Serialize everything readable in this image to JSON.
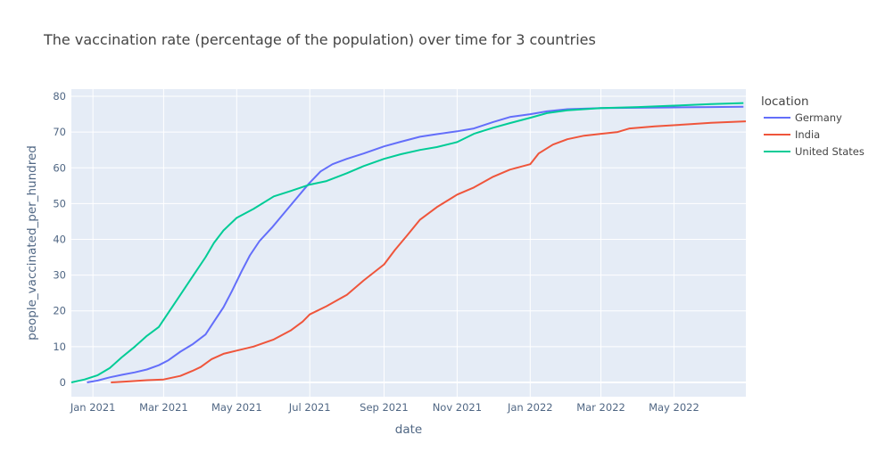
{
  "chart_data": {
    "type": "line",
    "title": "The vaccination rate (percentage of the population) over time for 3 countries",
    "xlabel": "date",
    "ylabel": "people_vaccinated_per_hundred",
    "xlim": [
      "2020-12-14",
      "2022-06-30"
    ],
    "ylim": [
      -4,
      82
    ],
    "x_ticks": [
      {
        "date": "2021-01-01",
        "label": "Jan 2021"
      },
      {
        "date": "2021-03-01",
        "label": "Mar 2021"
      },
      {
        "date": "2021-05-01",
        "label": "May 2021"
      },
      {
        "date": "2021-07-01",
        "label": "Jul 2021"
      },
      {
        "date": "2021-09-01",
        "label": "Sep 2021"
      },
      {
        "date": "2021-11-01",
        "label": "Nov 2021"
      },
      {
        "date": "2022-01-01",
        "label": "Jan 2022"
      },
      {
        "date": "2022-03-01",
        "label": "Mar 2022"
      },
      {
        "date": "2022-05-01",
        "label": "May 2022"
      }
    ],
    "y_ticks": [
      0,
      10,
      20,
      30,
      40,
      50,
      60,
      70,
      80
    ],
    "legend": {
      "title": "location",
      "position": "right"
    },
    "grid": true,
    "plot_bgcolor": "#E5ECF6",
    "series": [
      {
        "name": "Germany",
        "color": "#636EFA",
        "points": [
          [
            "2020-12-27",
            0.0
          ],
          [
            "2021-01-05",
            0.5
          ],
          [
            "2021-01-15",
            1.4
          ],
          [
            "2021-01-25",
            2.1
          ],
          [
            "2021-02-05",
            2.8
          ],
          [
            "2021-02-15",
            3.6
          ],
          [
            "2021-02-25",
            4.8
          ],
          [
            "2021-03-05",
            6.2
          ],
          [
            "2021-03-15",
            8.6
          ],
          [
            "2021-03-25",
            10.6
          ],
          [
            "2021-04-05",
            13.4
          ],
          [
            "2021-04-12",
            17.0
          ],
          [
            "2021-04-20",
            21.0
          ],
          [
            "2021-04-27",
            25.5
          ],
          [
            "2021-05-05",
            31.0
          ],
          [
            "2021-05-12",
            35.5
          ],
          [
            "2021-05-20",
            39.5
          ],
          [
            "2021-05-31",
            43.5
          ],
          [
            "2021-06-10",
            47.5
          ],
          [
            "2021-06-20",
            51.5
          ],
          [
            "2021-06-30",
            55.5
          ],
          [
            "2021-07-10",
            59.0
          ],
          [
            "2021-07-20",
            61.0
          ],
          [
            "2021-08-01",
            62.5
          ],
          [
            "2021-08-15",
            64.0
          ],
          [
            "2021-09-01",
            66.0
          ],
          [
            "2021-09-15",
            67.3
          ],
          [
            "2021-10-01",
            68.7
          ],
          [
            "2021-10-15",
            69.4
          ],
          [
            "2021-11-01",
            70.2
          ],
          [
            "2021-11-15",
            71.0
          ],
          [
            "2021-12-01",
            72.8
          ],
          [
            "2021-12-15",
            74.2
          ],
          [
            "2022-01-01",
            75.0
          ],
          [
            "2022-01-15",
            75.8
          ],
          [
            "2022-02-01",
            76.4
          ],
          [
            "2022-03-01",
            76.7
          ],
          [
            "2022-04-01",
            76.8
          ],
          [
            "2022-05-01",
            76.9
          ],
          [
            "2022-06-01",
            77.0
          ],
          [
            "2022-06-28",
            77.1
          ]
        ]
      },
      {
        "name": "India",
        "color": "#EF553B",
        "points": [
          [
            "2021-01-16",
            0.0
          ],
          [
            "2021-02-01",
            0.3
          ],
          [
            "2021-02-15",
            0.6
          ],
          [
            "2021-03-01",
            0.8
          ],
          [
            "2021-03-15",
            1.8
          ],
          [
            "2021-03-25",
            3.2
          ],
          [
            "2021-04-01",
            4.3
          ],
          [
            "2021-04-10",
            6.5
          ],
          [
            "2021-04-20",
            8.0
          ],
          [
            "2021-05-01",
            8.9
          ],
          [
            "2021-05-15",
            10.0
          ],
          [
            "2021-06-01",
            12.0
          ],
          [
            "2021-06-15",
            14.5
          ],
          [
            "2021-06-25",
            17.0
          ],
          [
            "2021-07-01",
            19.0
          ],
          [
            "2021-07-15",
            21.3
          ],
          [
            "2021-08-01",
            24.5
          ],
          [
            "2021-08-15",
            28.5
          ],
          [
            "2021-09-01",
            33.0
          ],
          [
            "2021-09-10",
            37.0
          ],
          [
            "2021-09-20",
            41.0
          ],
          [
            "2021-10-01",
            45.5
          ],
          [
            "2021-10-15",
            49.0
          ],
          [
            "2021-11-01",
            52.5
          ],
          [
            "2021-11-15",
            54.5
          ],
          [
            "2021-12-01",
            57.5
          ],
          [
            "2021-12-15",
            59.5
          ],
          [
            "2022-01-01",
            61.0
          ],
          [
            "2022-01-08",
            64.0
          ],
          [
            "2022-01-20",
            66.5
          ],
          [
            "2022-02-01",
            68.0
          ],
          [
            "2022-02-15",
            69.0
          ],
          [
            "2022-03-01",
            69.5
          ],
          [
            "2022-03-15",
            70.0
          ],
          [
            "2022-03-25",
            71.0
          ],
          [
            "2022-04-15",
            71.6
          ],
          [
            "2022-05-15",
            72.2
          ],
          [
            "2022-06-01",
            72.6
          ],
          [
            "2022-06-30",
            73.0
          ]
        ]
      },
      {
        "name": "United States",
        "color": "#00CC96",
        "points": [
          [
            "2020-12-14",
            0.0
          ],
          [
            "2020-12-25",
            0.8
          ],
          [
            "2021-01-05",
            2.0
          ],
          [
            "2021-01-15",
            4.0
          ],
          [
            "2021-01-25",
            7.0
          ],
          [
            "2021-02-05",
            10.0
          ],
          [
            "2021-02-15",
            13.0
          ],
          [
            "2021-02-25",
            15.5
          ],
          [
            "2021-03-05",
            19.5
          ],
          [
            "2021-03-15",
            24.5
          ],
          [
            "2021-03-25",
            29.5
          ],
          [
            "2021-04-05",
            35.0
          ],
          [
            "2021-04-12",
            39.0
          ],
          [
            "2021-04-20",
            42.5
          ],
          [
            "2021-05-01",
            46.0
          ],
          [
            "2021-05-15",
            48.5
          ],
          [
            "2021-06-01",
            52.0
          ],
          [
            "2021-06-15",
            53.5
          ],
          [
            "2021-07-01",
            55.3
          ],
          [
            "2021-07-15",
            56.3
          ],
          [
            "2021-08-01",
            58.5
          ],
          [
            "2021-08-15",
            60.5
          ],
          [
            "2021-09-01",
            62.5
          ],
          [
            "2021-09-15",
            63.8
          ],
          [
            "2021-10-01",
            65.0
          ],
          [
            "2021-10-15",
            65.8
          ],
          [
            "2021-11-01",
            67.2
          ],
          [
            "2021-11-15",
            69.5
          ],
          [
            "2021-12-01",
            71.2
          ],
          [
            "2021-12-15",
            72.5
          ],
          [
            "2022-01-01",
            74.0
          ],
          [
            "2022-01-15",
            75.3
          ],
          [
            "2022-02-01",
            76.1
          ],
          [
            "2022-03-01",
            76.7
          ],
          [
            "2022-04-01",
            77.0
          ],
          [
            "2022-05-01",
            77.4
          ],
          [
            "2022-06-01",
            77.8
          ],
          [
            "2022-06-28",
            78.1
          ]
        ]
      }
    ]
  }
}
